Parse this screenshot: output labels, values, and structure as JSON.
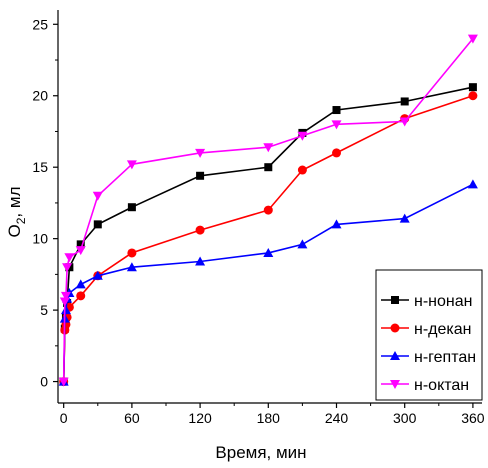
{
  "chart_data": {
    "type": "line",
    "xlabel": "Время, мин",
    "ylabel_main": "O",
    "ylabel_sub": "2",
    "ylabel_rest": ", мл",
    "xlim": [
      -5,
      368
    ],
    "ylim": [
      -1.5,
      26
    ],
    "xticks": [
      0,
      60,
      120,
      180,
      240,
      300,
      360
    ],
    "yticks": [
      0,
      5,
      10,
      15,
      20,
      25
    ],
    "legend_position": "bottom-right",
    "series": [
      {
        "name": "н-нонан",
        "color": "#000000",
        "marker": "square",
        "x": [
          0,
          1,
          2,
          3,
          5,
          15,
          30,
          60,
          120,
          180,
          210,
          240,
          300,
          360
        ],
        "y": [
          0,
          3.7,
          4.5,
          5.5,
          8,
          9.6,
          11,
          12.2,
          14.4,
          15,
          17.4,
          19,
          19.6,
          20.6
        ]
      },
      {
        "name": "н-декан",
        "color": "#ff0000",
        "marker": "circle",
        "x": [
          0,
          1,
          2,
          3,
          5,
          15,
          30,
          60,
          120,
          180,
          210,
          240,
          300,
          360
        ],
        "y": [
          0,
          3.6,
          4,
          4.5,
          5.2,
          6,
          7.4,
          9,
          10.6,
          12,
          14.8,
          16,
          18.4,
          20
        ]
      },
      {
        "name": "н-гептан",
        "color": "#0000ff",
        "marker": "triangle-up",
        "x": [
          0,
          1,
          2,
          3,
          5,
          15,
          30,
          60,
          120,
          180,
          210,
          240,
          300,
          360
        ],
        "y": [
          0,
          4.4,
          5,
          5.8,
          6.2,
          6.8,
          7.4,
          8,
          8.4,
          9,
          9.6,
          11,
          11.4,
          13.8
        ]
      },
      {
        "name": "н-октан",
        "color": "#ff00ff",
        "marker": "triangle-down",
        "x": [
          0,
          1,
          2,
          3,
          5,
          15,
          30,
          60,
          120,
          180,
          210,
          240,
          300,
          360
        ],
        "y": [
          0,
          5.6,
          6,
          8,
          8.7,
          9.2,
          13,
          15.2,
          16,
          16.4,
          17.2,
          18,
          18.2,
          24
        ]
      }
    ]
  }
}
